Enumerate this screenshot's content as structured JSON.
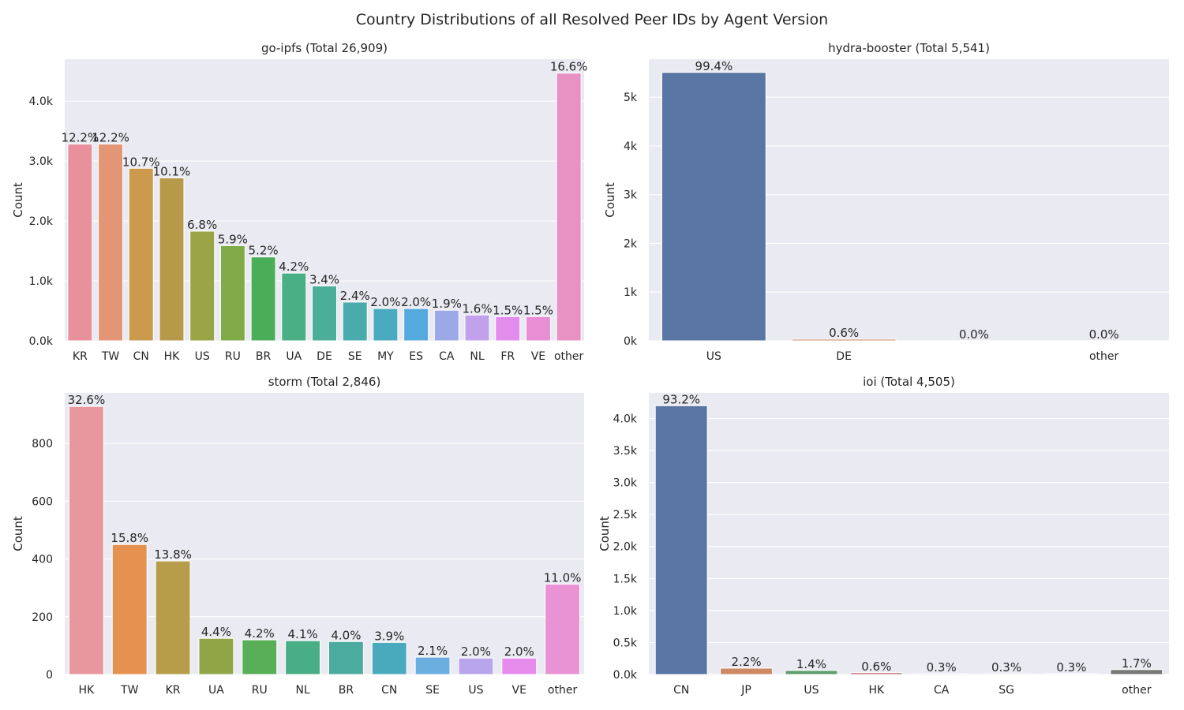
{
  "figure_title": "Country Distributions of all Resolved Peer IDs by Agent Version",
  "chart_data": [
    {
      "type": "bar",
      "title": "go-ipfs (Total 26,909)",
      "xlabel": "",
      "ylabel": "Count",
      "ylim": [
        0,
        4700
      ],
      "yticks": [
        0,
        1000,
        2000,
        3000,
        4000
      ],
      "ytick_labels": [
        "0.0k",
        "1.0k",
        "2.0k",
        "3.0k",
        "4.0k"
      ],
      "grid": true,
      "categories": [
        "KR",
        "TW",
        "CN",
        "HK",
        "US",
        "RU",
        "BR",
        "UA",
        "DE",
        "SE",
        "MY",
        "ES",
        "CA",
        "NL",
        "FR",
        "VE",
        "other"
      ],
      "values": [
        3283,
        3283,
        2879,
        2718,
        1830,
        1588,
        1399,
        1130,
        915,
        646,
        538,
        538,
        511,
        431,
        404,
        404,
        4467
      ],
      "labels": [
        "12.2%",
        "12.2%",
        "10.7%",
        "10.1%",
        "6.8%",
        "5.9%",
        "5.2%",
        "4.2%",
        "3.4%",
        "2.4%",
        "2.0%",
        "2.0%",
        "1.9%",
        "1.6%",
        "1.5%",
        "1.5%",
        "16.6%"
      ],
      "colors": [
        "#e8919c",
        "#e39676",
        "#cc9a4c",
        "#b69a4a",
        "#9ba447",
        "#80ab47",
        "#4aae59",
        "#49af84",
        "#4aae98",
        "#4aabad",
        "#4aaabf",
        "#54a9dd",
        "#9ba9e8",
        "#c1a1ec",
        "#e28ded",
        "#e98ed5",
        "#e891c3"
      ]
    },
    {
      "type": "bar",
      "title": "hydra-booster (Total 5,541)",
      "xlabel": "",
      "ylabel": "Count",
      "ylim": [
        0,
        5780
      ],
      "yticks": [
        0,
        1000,
        2000,
        3000,
        4000,
        5000
      ],
      "ytick_labels": [
        "0k",
        "1k",
        "2k",
        "3k",
        "4k",
        "5k"
      ],
      "grid": true,
      "categories": [
        "US",
        "DE",
        "",
        "other"
      ],
      "values": [
        5508,
        33,
        0,
        0
      ],
      "labels": [
        "99.4%",
        "0.6%",
        "0.0%",
        "0.0%"
      ],
      "colors": [
        "#5875a4",
        "#cc8963",
        "#5f9e6e",
        "#b55d60"
      ]
    },
    {
      "type": "bar",
      "title": "storm (Total 2,846)",
      "xlabel": "",
      "ylabel": "Count",
      "ylim": [
        0,
        975
      ],
      "yticks": [
        0,
        200,
        400,
        600,
        800
      ],
      "ytick_labels": [
        "0",
        "200",
        "400",
        "600",
        "800"
      ],
      "grid": true,
      "categories": [
        "HK",
        "TW",
        "KR",
        "UA",
        "RU",
        "NL",
        "BR",
        "CN",
        "SE",
        "US",
        "VE",
        "other"
      ],
      "values": [
        928,
        450,
        393,
        125,
        120,
        117,
        114,
        111,
        60,
        57,
        57,
        313
      ],
      "labels": [
        "32.6%",
        "15.8%",
        "13.8%",
        "4.4%",
        "4.2%",
        "4.1%",
        "4.0%",
        "3.9%",
        "2.1%",
        "2.0%",
        "2.0%",
        "11.0%"
      ],
      "colors": [
        "#e8979f",
        "#e59150",
        "#b79c4a",
        "#8fa546",
        "#58af57",
        "#49ad85",
        "#4aab9e",
        "#4aaabd",
        "#6baee0",
        "#b8a5ec",
        "#e68ced",
        "#e993d4"
      ]
    },
    {
      "type": "bar",
      "title": "ioi (Total 4,505)",
      "xlabel": "",
      "ylabel": "Count",
      "ylim": [
        0,
        4400
      ],
      "yticks": [
        0,
        500,
        1000,
        1500,
        2000,
        2500,
        3000,
        3500,
        4000
      ],
      "ytick_labels": [
        "0.0k",
        "0.5k",
        "1.0k",
        "1.5k",
        "2.0k",
        "2.5k",
        "3.0k",
        "3.5k",
        "4.0k"
      ],
      "grid": true,
      "categories": [
        "CN",
        "JP",
        "US",
        "HK",
        "CA",
        "SG",
        "",
        "other"
      ],
      "values": [
        4199,
        99,
        63,
        27,
        14,
        14,
        14,
        77
      ],
      "labels": [
        "93.2%",
        "2.2%",
        "1.4%",
        "0.6%",
        "0.3%",
        "0.3%",
        "0.3%",
        "1.7%"
      ],
      "colors": [
        "#5875a4",
        "#cc8963",
        "#5f9e6e",
        "#b55d60",
        "#857aab",
        "#8d7866",
        "#d095bf",
        "#797979"
      ]
    }
  ]
}
